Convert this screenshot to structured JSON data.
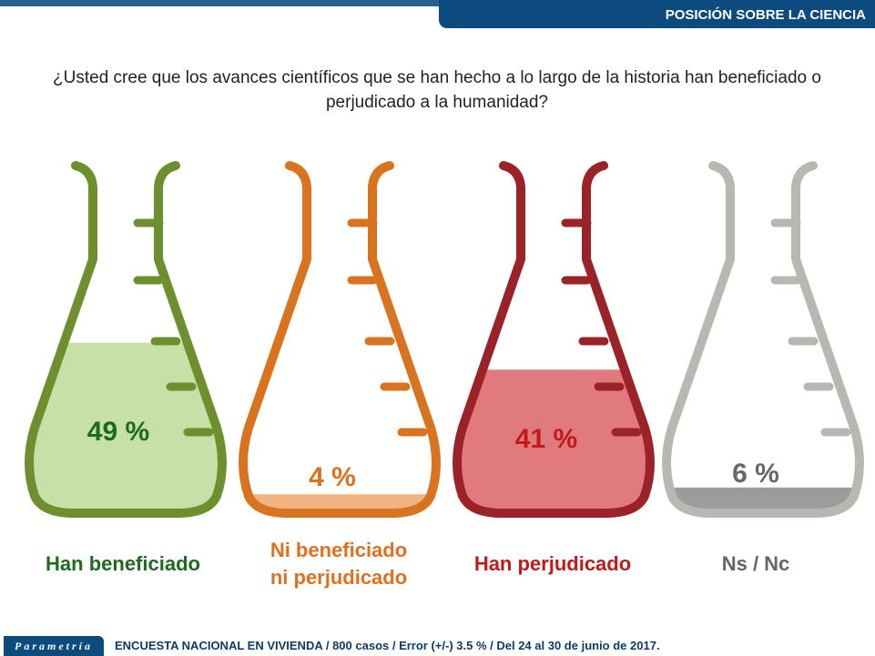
{
  "header": {
    "title": "POSICIÓN SOBRE LA CIENCIA"
  },
  "question": "¿Usted cree que los avances científicos que se han hecho a lo largo de la historia han beneficiado o perjudicado a la humanidad?",
  "chart_data": {
    "type": "bar",
    "title": "¿Usted cree que los avances científicos que se han hecho a lo largo de la historia han beneficiado o perjudicado a la humanidad?",
    "categories": [
      "Han beneficiado",
      "Ni beneficiado ni perjudicado",
      "Han perjudicado",
      "Ns / Nc"
    ],
    "values": [
      49,
      4,
      41,
      6
    ],
    "value_labels": [
      "49 %",
      "4 %",
      "41 %",
      "6 %"
    ],
    "unit": "%",
    "colors": {
      "outline": [
        "#6e8f2e",
        "#d9731f",
        "#9b2226",
        "#b9b7b2"
      ],
      "fill": [
        "#c6e0a8",
        "#f2b482",
        "#e07a7e",
        "#9c9c9c"
      ],
      "text": [
        "#1e6a1e",
        "#e07020",
        "#c01a1a",
        "#666666"
      ]
    }
  },
  "labels": {
    "cat0": "Han beneficiado",
    "cat1a": "Ni beneficiado",
    "cat1b": "ni perjudicado",
    "cat2": "Han perjudicado",
    "cat3": "Ns / Nc"
  },
  "footer": {
    "logo": "Parametría",
    "text": "ENCUESTA NACIONAL EN VIVIENDA / 800 casos / Error (+/-) 3.5 % / Del 24 al 30 de junio de 2017."
  }
}
